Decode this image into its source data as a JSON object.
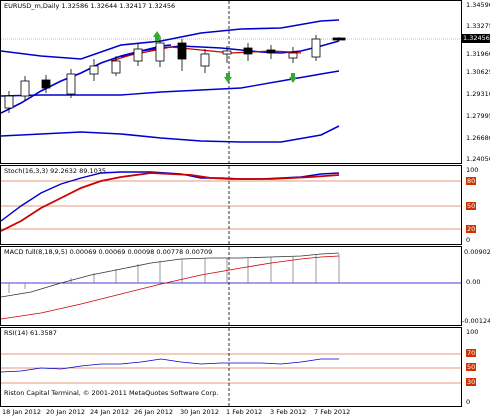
{
  "main": {
    "header": "EURUSD_m,Daily  1.32586 1.32644 1.32417 1.32456",
    "price_ticks": [
      "1.34590",
      "1.33275",
      "1.31960",
      "1.30625",
      "1.29310",
      "1.27995",
      "1.26680",
      "1.25365",
      "1.24050"
    ],
    "current_price": "1.32456"
  },
  "stoch": {
    "header": "Stoch(16,3,3) 92.2632 89.1035",
    "levels": [
      "100",
      "80",
      "50",
      "20",
      "0"
    ]
  },
  "macd": {
    "header": "MACD full(8,18,9,5) 0.00069 0.00069 0.00098 0.00778 0.00709",
    "ticks": [
      "0.00902",
      "0.00",
      "-0.00124"
    ]
  },
  "rsi": {
    "header": "RSI(14) 61.3587",
    "levels": [
      "100",
      "70",
      "50",
      "30",
      "0"
    ]
  },
  "copyright": "Riston Capital Terminal, © 2001-2011 MetaQuotes Software Corp.",
  "x_labels": [
    "18 Jan 2012",
    "20 Jan 2012",
    "24 Jan 2012",
    "26 Jan 2012",
    "30 Jan 2012",
    "1 Feb 2012",
    "3 Feb 2012",
    "7 Feb 2012"
  ],
  "colors": {
    "blue": "#0000cc",
    "red": "#cc0000",
    "level": "#cc3300",
    "green": "#33aa33",
    "grid": "#c0c0c0"
  }
}
